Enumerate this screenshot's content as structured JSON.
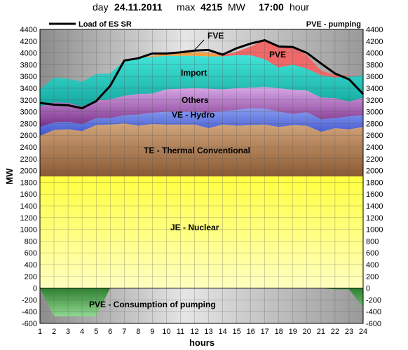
{
  "header": {
    "day_label": "day",
    "date": "24.11.2011",
    "max_label": "max",
    "max_value": "4215",
    "unit": "MW",
    "time": "17:00",
    "hour_label": "hour"
  },
  "chart_data": {
    "type": "area",
    "x": [
      1,
      2,
      3,
      4,
      5,
      6,
      7,
      8,
      9,
      10,
      11,
      12,
      13,
      14,
      15,
      16,
      17,
      18,
      19,
      20,
      21,
      22,
      23,
      24
    ],
    "xlabel": "hours",
    "ylabel": "MW",
    "ylim": [
      -600,
      4400
    ],
    "yticks": [
      -600,
      -400,
      -200,
      0,
      200,
      400,
      600,
      800,
      1000,
      1200,
      1400,
      1600,
      1800,
      2000,
      2200,
      2400,
      2600,
      2800,
      3000,
      3200,
      3400,
      3600,
      3800,
      4000,
      4200,
      4400
    ],
    "legend": [
      {
        "name": "Load of ES SR",
        "position": "top-left"
      },
      {
        "name": "PVE - pumping",
        "position": "top-right"
      }
    ],
    "stack_tops": {
      "JE - Nuclear": [
        1900,
        1900,
        1900,
        1900,
        1900,
        1900,
        1900,
        1900,
        1900,
        1900,
        1900,
        1900,
        1900,
        1900,
        1900,
        1900,
        1900,
        1900,
        1900,
        1900,
        1900,
        1900,
        1900,
        1900
      ],
      "TE - Thermal Conventional": [
        2590,
        2690,
        2700,
        2670,
        2770,
        2780,
        2800,
        2760,
        2790,
        2780,
        2780,
        2780,
        2720,
        2780,
        2760,
        2770,
        2780,
        2740,
        2770,
        2760,
        2660,
        2720,
        2700,
        2740
      ],
      "VE - Hydro": [
        2740,
        2820,
        2830,
        2790,
        2890,
        2890,
        2940,
        2950,
        2980,
        3000,
        3000,
        3000,
        2980,
        3010,
        3030,
        3060,
        3050,
        3000,
        2960,
        2990,
        2870,
        2890,
        2920,
        2940
      ],
      "Others": [
        3090,
        3160,
        3150,
        3090,
        3190,
        3210,
        3270,
        3300,
        3310,
        3380,
        3390,
        3400,
        3390,
        3380,
        3400,
        3410,
        3420,
        3400,
        3370,
        3360,
        3240,
        3230,
        3170,
        3240
      ],
      "Import": [
        3380,
        3580,
        3560,
        3510,
        3640,
        3650,
        3880,
        3920,
        3930,
        3950,
        3950,
        3950,
        3940,
        3940,
        3960,
        3960,
        3890,
        3750,
        3800,
        3730,
        3620,
        3580,
        3600,
        3620
      ],
      "FVE": [
        3380,
        3580,
        3560,
        3510,
        3640,
        3650,
        3880,
        3920,
        3950,
        3990,
        4000,
        4010,
        4010,
        3940,
        3960,
        3960,
        3890,
        3750,
        3800,
        3730,
        3620,
        3580,
        3600,
        3620
      ],
      "PVE": [
        3380,
        3580,
        3560,
        3510,
        3640,
        3650,
        3880,
        3920,
        3950,
        3990,
        4000,
        4010,
        4010,
        3960,
        4020,
        4110,
        4220,
        4110,
        4100,
        3960,
        3700,
        3620,
        3620,
        3620
      ]
    },
    "pumping": [
      0,
      -480,
      -480,
      -480,
      -480,
      0,
      0,
      0,
      0,
      0,
      0,
      0,
      0,
      0,
      0,
      0,
      0,
      0,
      0,
      0,
      0,
      -20,
      -20,
      -330
    ],
    "load": [
      3150,
      3120,
      3110,
      3060,
      3180,
      3440,
      3870,
      3910,
      3990,
      3990,
      4010,
      4040,
      4050,
      3970,
      4080,
      4160,
      4215,
      4110,
      4100,
      4000,
      3820,
      3650,
      3550,
      3300
    ],
    "series_labels": {
      "nuclear": "JE - Nuclear",
      "thermal": "TE - Thermal Conventional",
      "hydro": "VE - Hydro",
      "others": "Others",
      "import": "Import",
      "fve": "FVE",
      "pve": "PVE",
      "pumping": "PVE - Consumption of pumping"
    },
    "colors": {
      "nuclear_top": "#ffff40",
      "nuclear_bottom": "#ffffc0",
      "thermal_top": "#d2a47a",
      "thermal_bottom": "#8a5a34",
      "hydro_top": "#8a9cf0",
      "hydro_bottom": "#3c54d0",
      "others_top": "#d8a8e8",
      "others_bottom": "#7a2e88",
      "import_top": "#40e4d8",
      "import_bottom": "#14a8a0",
      "fve": "#f5a040",
      "pve": "#f06868",
      "pumping_top": "#2e8030",
      "pumping_bottom": "#90d890",
      "load": "#000000",
      "plot_bg": "#b0b0b0"
    }
  }
}
